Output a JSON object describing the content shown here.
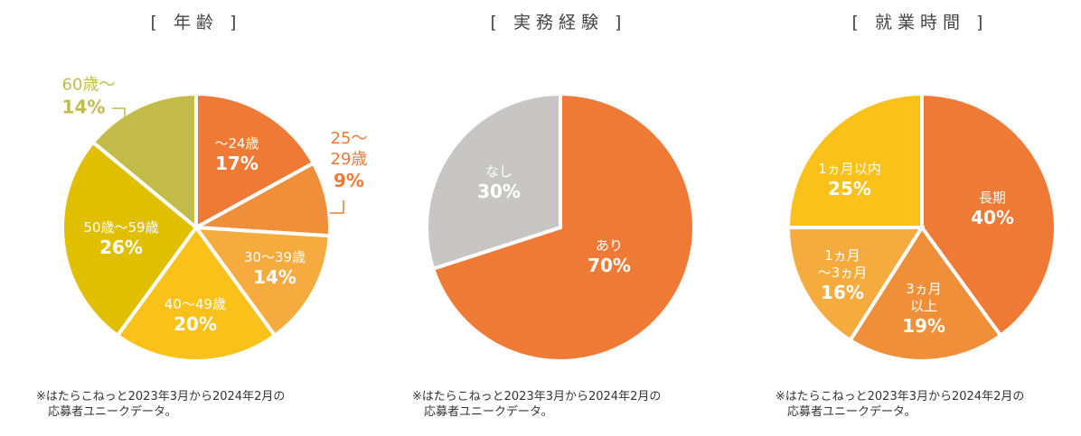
{
  "chart_data": [
    {
      "type": "pie",
      "title": "[ 年齢 ]",
      "start": "top",
      "direction": "clockwise",
      "slices": [
        {
          "label": "〜24歳",
          "value": 17,
          "color": "#EE7A36",
          "label_text": "17%"
        },
        {
          "label": "25〜29歳",
          "value": 9,
          "color": "#F08F3A",
          "label_text": "9%"
        },
        {
          "label": "30〜39歳",
          "value": 14,
          "color": "#F5AB3E",
          "label_text": "14%"
        },
        {
          "label": "40〜49歳",
          "value": 20,
          "color": "#F9C11A",
          "label_text": "20%"
        },
        {
          "label": "50歳〜59歳",
          "value": 26,
          "color": "#E0BE00",
          "label_text": "26%"
        },
        {
          "label": "60歳〜",
          "value": 14,
          "color": "#C3BC4A",
          "label_text": "14%"
        }
      ],
      "note": [
        "※はたらこねっと2023年3月から2024年2月の",
        "応募者ユニークデータ。"
      ]
    },
    {
      "type": "pie",
      "title": "[ 実務経験 ]",
      "start": "top",
      "direction": "clockwise",
      "slices": [
        {
          "label": "あり",
          "value": 70,
          "color": "#EE7A36",
          "label_text": "70%"
        },
        {
          "label": "なし",
          "value": 30,
          "color": "#C8C6C4",
          "label_text": "30%"
        }
      ],
      "note": [
        "※はたらこねっと2023年3月から2024年2月の",
        "応募者ユニークデータ。"
      ]
    },
    {
      "type": "pie",
      "title": "[ 就業時間 ]",
      "start": "top",
      "direction": "clockwise",
      "slices": [
        {
          "label": "長期",
          "value": 40,
          "color": "#EE7A36",
          "label_text": "40%"
        },
        {
          "label": "3ヵ月\n以上",
          "value": 19,
          "color": "#F08F3A",
          "label_text": "19%"
        },
        {
          "label": "1ヵ月\n〜3ヵ月",
          "value": 16,
          "color": "#F5AB3E",
          "label_text": "16%"
        },
        {
          "label": "1ヵ月以内",
          "value": 25,
          "color": "#F9C11A",
          "label_text": "25%"
        }
      ],
      "note": [
        "※はたらこねっと2023年3月から2024年2月の",
        "応募者ユニークデータ。"
      ]
    }
  ]
}
